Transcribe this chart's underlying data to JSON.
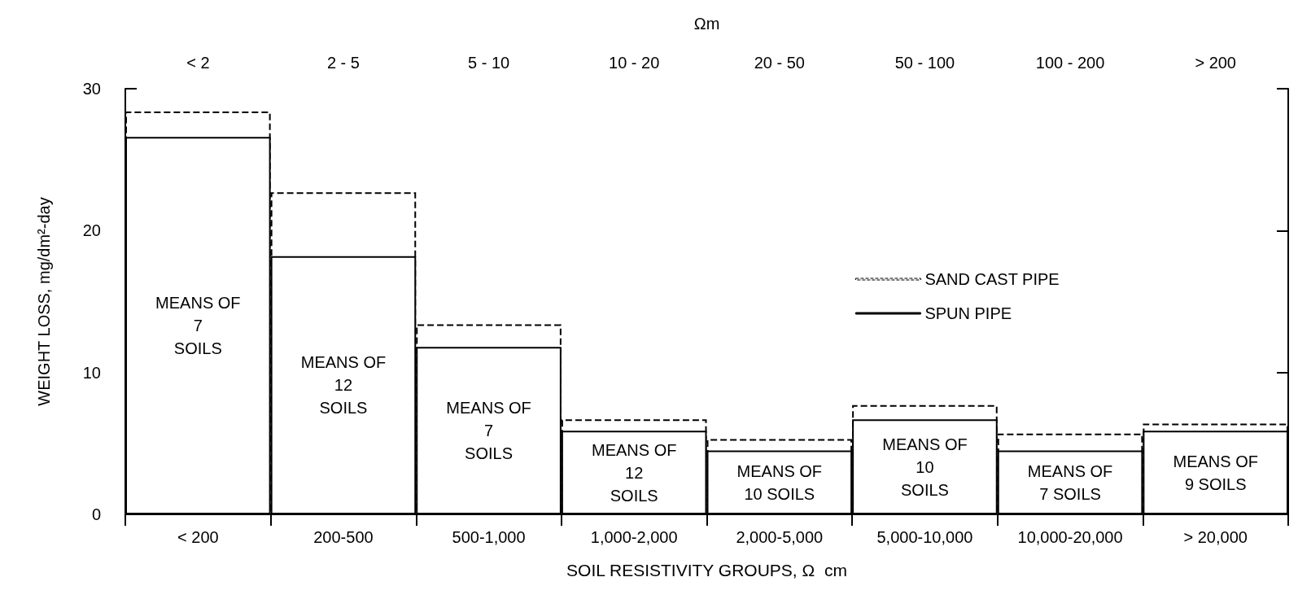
{
  "chart_data": {
    "type": "bar",
    "xlabel": "SOIL RESISTIVITY GROUPS, Ω  cm",
    "ylabel": "WEIGHT LOSS, mg/dm²-day",
    "x2label": "Ωm",
    "categories": [
      "< 200",
      "200-500",
      "500-1,000",
      "1,000-2,000",
      "2,000-5,000",
      "5,000-10,000",
      "10,000-20,000",
      "> 20,000"
    ],
    "series": [
      {
        "name": "SAND CAST PIPE",
        "color": "#000000",
        "line_style": "dashed",
        "values": [
          28.4,
          22.7,
          13.4,
          6.7,
          5.3,
          7.7,
          5.7,
          6.4
        ]
      },
      {
        "name": "SPUN PIPE",
        "color": "#000000",
        "line_style": "solid",
        "values": [
          26.6,
          18.2,
          11.8,
          5.9,
          4.5,
          6.7,
          4.5,
          5.9
        ]
      }
    ],
    "ylim": [
      0,
      30
    ],
    "yticks": [
      0,
      10,
      20,
      30
    ],
    "grid": false,
    "legend": "right",
    "annotations": [
      "< 2",
      "2 - 5",
      "5 - 10",
      "10 - 20",
      "20 - 50",
      "50 - 100",
      "100 - 200",
      "> 200",
      "MEANS OF\n7\nSOILS",
      "MEANS OF\n12\nSOILS",
      "MEANS OF\n7\nSOILS",
      "MEANS OF\n12\nSOILS",
      "MEANS OF\n10 SOILS",
      "MEANS OF\n10\nSOILS",
      "MEANS OF\n7 SOILS",
      "MEANS OF\n9 SOILS"
    ]
  }
}
